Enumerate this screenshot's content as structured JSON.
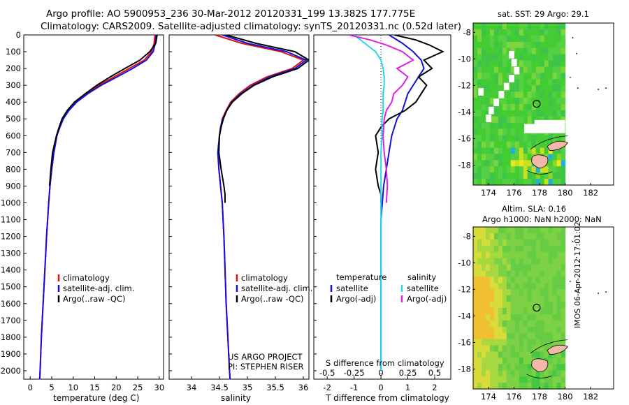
{
  "header": {
    "title_line1": "Argo profile: AO 5900953_236 30-Mar-2012 20120331_199 13.382S 177.775E",
    "title_line2": "Climatology: CARS2009. Satellite-adjusted climatology: synTS_20120331.nc (0.52d later)"
  },
  "colors": {
    "climatology": "#e01010",
    "satellite": "#1010e0",
    "argo": "#000000",
    "salinity_satellite": "#22d8e8",
    "salinity_argo": "#e020e0",
    "land": "#f4b8a8"
  },
  "chart_data": [
    {
      "type": "line",
      "name": "temperature",
      "xlabel": "temperature (deg C)",
      "xlim": [
        -1.5,
        31
      ],
      "xticks": [
        0,
        5,
        10,
        15,
        20,
        25,
        30
      ],
      "ylim": [
        0,
        2050
      ],
      "yticks": [
        0,
        100,
        200,
        300,
        400,
        500,
        600,
        700,
        800,
        900,
        1000,
        1100,
        1200,
        1300,
        1400,
        1500,
        1600,
        1700,
        1800,
        1900,
        2000
      ],
      "legend": [
        "climatology",
        "satellite-adj. clim.",
        "Argo(..raw -QC)"
      ],
      "series": [
        {
          "name": "climatology",
          "depth": [
            0,
            50,
            100,
            150,
            200,
            250,
            300,
            350,
            400,
            450,
            500,
            550,
            600,
            700,
            800,
            900,
            1000,
            1200,
            1400,
            1600,
            1800,
            2000,
            2050
          ],
          "values": [
            29.0,
            28.8,
            28.2,
            26.5,
            23.0,
            19.5,
            16.0,
            13.0,
            10.5,
            8.8,
            7.6,
            6.8,
            6.2,
            5.5,
            5.0,
            4.6,
            4.3,
            3.8,
            3.4,
            3.0,
            2.6,
            2.3,
            2.2
          ]
        },
        {
          "name": "satellite-adj. clim.",
          "depth": [
            0,
            50,
            100,
            150,
            200,
            250,
            300,
            350,
            400,
            450,
            500,
            550,
            600,
            700,
            800,
            900,
            1000,
            1200,
            1400,
            1600,
            1800,
            2000,
            2050
          ],
          "values": [
            29.3,
            29.1,
            28.6,
            27.0,
            23.8,
            20.2,
            16.5,
            13.4,
            10.8,
            9.0,
            7.7,
            6.9,
            6.2,
            5.5,
            5.0,
            4.6,
            4.3,
            3.8,
            3.4,
            3.0,
            2.6,
            2.3,
            2.2
          ]
        },
        {
          "name": "Argo(..raw -QC)",
          "depth": [
            0,
            50,
            100,
            150,
            200,
            250,
            300,
            350,
            400,
            450,
            500,
            550,
            600,
            700,
            800,
            900
          ],
          "values": [
            29.5,
            29.2,
            27.8,
            25.5,
            22.0,
            18.6,
            15.5,
            12.8,
            10.3,
            8.6,
            7.4,
            6.7,
            6.1,
            5.2,
            4.8,
            4.5
          ]
        }
      ]
    },
    {
      "type": "line",
      "name": "salinity",
      "xlabel": "salinity",
      "xlim": [
        33.6,
        36.1
      ],
      "xticks": [
        34,
        34.5,
        35,
        35.5,
        36
      ],
      "ylim": [
        0,
        2050
      ],
      "legend": [
        "climatology",
        "satellite-adj. clim.",
        "Argo(..raw -QC)"
      ],
      "annotation": [
        "US ARGO PROJECT",
        "PI: STEPHEN RISER"
      ],
      "series": [
        {
          "name": "climatology",
          "depth": [
            0,
            50,
            100,
            150,
            200,
            250,
            300,
            350,
            400,
            450,
            500,
            550,
            600,
            700,
            800,
            900,
            1000,
            1200,
            1400,
            1600,
            1800,
            2000,
            2050
          ],
          "values": [
            34.42,
            34.9,
            35.6,
            36.0,
            35.8,
            35.35,
            35.05,
            34.85,
            34.7,
            34.62,
            34.55,
            34.52,
            34.5,
            34.48,
            34.49,
            34.52,
            34.55,
            34.58,
            34.6,
            34.62,
            34.65,
            34.68,
            34.69
          ]
        },
        {
          "name": "satellite-adj. clim.",
          "depth": [
            0,
            50,
            100,
            150,
            200,
            250,
            300,
            350,
            400,
            450,
            500,
            550,
            600,
            700,
            800,
            900,
            1000,
            1200,
            1400,
            1600,
            1800,
            2000,
            2050
          ],
          "values": [
            34.55,
            35.0,
            35.7,
            36.05,
            35.85,
            35.4,
            35.1,
            34.88,
            34.72,
            34.63,
            34.56,
            34.52,
            34.5,
            34.47,
            34.49,
            34.52,
            34.55,
            34.58,
            34.6,
            34.62,
            34.65,
            34.68,
            34.69
          ]
        },
        {
          "name": "Argo(..raw -QC)",
          "depth": [
            0,
            50,
            100,
            150,
            200,
            250,
            300,
            350,
            400,
            450,
            500,
            550,
            600,
            700,
            800,
            900,
            950,
            1000
          ],
          "values": [
            34.62,
            35.15,
            35.85,
            36.1,
            35.9,
            35.45,
            35.12,
            34.9,
            34.73,
            34.63,
            34.57,
            34.53,
            34.5,
            34.49,
            34.53,
            34.58,
            34.6,
            34.6
          ]
        }
      ]
    },
    {
      "type": "line",
      "name": "difference from climatology",
      "xlabel": "T difference from climatology",
      "xlabel_top": "S difference from climatology",
      "xlim": [
        -2.5,
        2.6
      ],
      "xticks": [
        -2,
        -1,
        0,
        1,
        2
      ],
      "sticks": [
        -0.5,
        -0.25,
        0,
        0.25,
        0.5
      ],
      "stick_labels": [
        "-0.5",
        "-0.25",
        "0",
        "0.25",
        "0.5"
      ],
      "ylim": [
        0,
        2050
      ],
      "legend_temperature": [
        "temperature",
        "satellite",
        "Argo(-adj)"
      ],
      "legend_salinity": [
        "salinity",
        "satellite",
        "Argo(-adj)"
      ],
      "series": [
        {
          "name": "temperature satellite",
          "depth": [
            0,
            50,
            100,
            150,
            200,
            250,
            300,
            350,
            400,
            450,
            500,
            600,
            700,
            800,
            900,
            1000,
            1100,
            1200,
            1500,
            2000
          ],
          "values": [
            0.3,
            0.8,
            1.2,
            1.5,
            1.6,
            1.4,
            1.2,
            1.0,
            0.9,
            0.8,
            0.6,
            0.4,
            0.3,
            0.2,
            0.1,
            0.05,
            0.0,
            0.0,
            0.0,
            0.0
          ]
        },
        {
          "name": "temperature Argo(-adj)",
          "depth": [
            0,
            30,
            60,
            100,
            150,
            200,
            250,
            300,
            350,
            400,
            450,
            500,
            550,
            600,
            700,
            800,
            900,
            950,
            1000
          ],
          "values": [
            0.5,
            1.3,
            1.8,
            2.3,
            1.6,
            1.9,
            1.4,
            1.7,
            1.5,
            1.3,
            0.9,
            0.3,
            0.0,
            -0.2,
            -0.1,
            -0.2,
            -0.1,
            0.0,
            0.0
          ]
        },
        {
          "name": "salinity satellite",
          "depth": [
            0,
            50,
            100,
            150,
            200,
            250,
            300,
            350,
            400,
            450,
            500,
            600,
            700,
            800,
            900,
            1000,
            1200,
            1500,
            2000
          ],
          "values": [
            -0.25,
            -0.15,
            -0.05,
            0.0,
            0.02,
            0.03,
            0.03,
            0.02,
            0.02,
            0.02,
            0.01,
            0.01,
            0.0,
            0.0,
            0.0,
            0.0,
            0.0,
            0.0,
            0.0
          ]
        },
        {
          "name": "salinity Argo(-adj)",
          "depth": [
            0,
            30,
            60,
            100,
            150,
            200,
            250,
            300,
            350,
            400,
            450,
            500,
            600,
            700,
            800,
            900,
            1000
          ],
          "values": [
            -0.3,
            -0.1,
            0.05,
            0.2,
            0.3,
            0.15,
            0.25,
            0.2,
            0.12,
            0.1,
            0.05,
            0.03,
            0.02,
            0.03,
            0.05,
            0.06,
            0.05
          ]
        }
      ]
    },
    {
      "type": "heatmap",
      "name": "sst map",
      "title": "sat. SST: 29 Argo: 29.1",
      "xlim": [
        172.8,
        183.8
      ],
      "ylim": [
        -19.5,
        -7.3
      ],
      "xticks": [
        174,
        176,
        178,
        180,
        182
      ],
      "yticks": [
        -8,
        -10,
        -12,
        -14,
        -16,
        -18
      ],
      "marker": [
        177.775,
        -13.382
      ]
    },
    {
      "type": "heatmap",
      "name": "sla map",
      "title_line1": "Altim. SLA: 0.16",
      "title_line2": "Argo h1000: NaN h2000: NaN",
      "xlim": [
        172.8,
        183.8
      ],
      "ylim": [
        -19.5,
        -7.3
      ],
      "xticks": [
        174,
        176,
        178,
        180,
        182
      ],
      "yticks": [
        -8,
        -10,
        -12,
        -14,
        -16,
        -18
      ],
      "marker": [
        177.775,
        -13.382
      ]
    }
  ],
  "watermark": "IMOS 06-Apr-2012 17:01:02"
}
